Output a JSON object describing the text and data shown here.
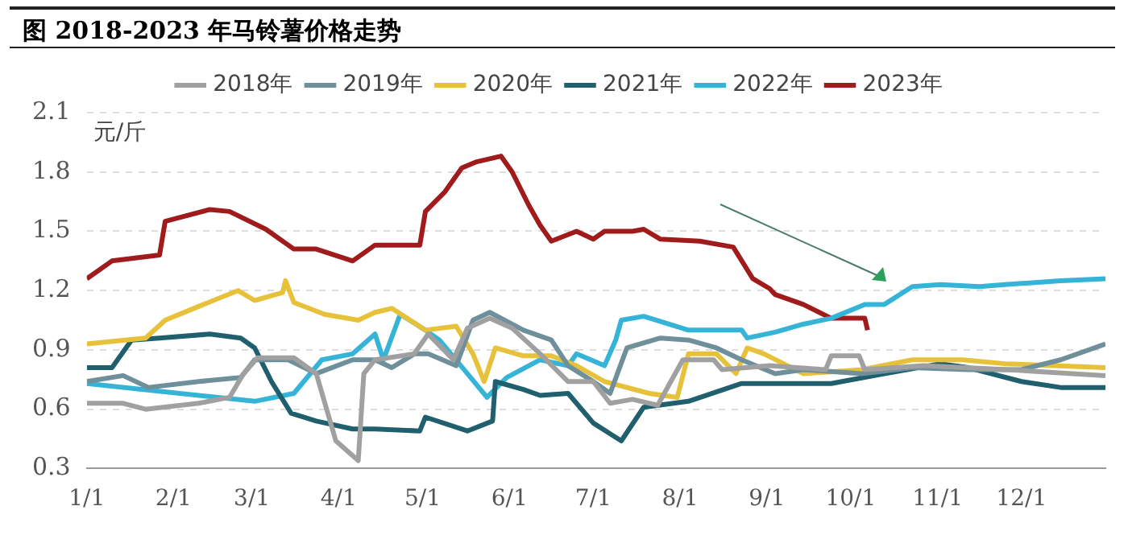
{
  "chart_data": {
    "type": "line",
    "title": "图 2018-2023 年马铃薯价格走势",
    "ylabel": "元/斤",
    "xlim": [
      "--01-01",
      "--12-31"
    ],
    "xticks": [
      {
        "value": "--01-01",
        "label": "1/1"
      },
      {
        "value": "--02-01",
        "label": "2/1"
      },
      {
        "value": "--03-01",
        "label": "3/1"
      },
      {
        "value": "--04-01",
        "label": "4/1"
      },
      {
        "value": "--05-01",
        "label": "5/1"
      },
      {
        "value": "--06-01",
        "label": "6/1"
      },
      {
        "value": "--07-01",
        "label": "7/1"
      },
      {
        "value": "--08-01",
        "label": "8/1"
      },
      {
        "value": "--09-01",
        "label": "9/1"
      },
      {
        "value": "--10-01",
        "label": "10/1"
      },
      {
        "value": "--11-01",
        "label": "11/1"
      },
      {
        "value": "--12-01",
        "label": "12/1"
      }
    ],
    "ylim": [
      0.3,
      2.1
    ],
    "yticks": [
      0.3,
      0.6,
      0.9,
      1.2,
      1.5,
      1.8,
      2.1
    ],
    "grid": "y",
    "legend": "top",
    "marker": "none",
    "line_style": "solid",
    "series": [
      {
        "name": "2018年",
        "color": "#a0a0a0",
        "x": [
          "--01-01",
          "--01-14",
          "--01-22",
          "--02-10",
          "--02-21",
          "--02-26",
          "--03-03",
          "--03-16",
          "--03-24",
          "--03-31",
          "--04-08",
          "--04-10",
          "--04-14",
          "--04-28",
          "--05-03",
          "--05-12",
          "--05-17",
          "--05-25",
          "--06-02",
          "--06-12",
          "--06-22",
          "--07-01",
          "--07-07",
          "--07-15",
          "--07-24",
          "--08-02",
          "--08-13",
          "--08-16",
          "--09-02",
          "--09-22",
          "--09-24",
          "--10-04",
          "--10-06",
          "--10-27",
          "--11-26",
          "--12-31"
        ],
        "values": [
          0.63,
          0.63,
          0.6,
          0.63,
          0.66,
          0.78,
          0.86,
          0.86,
          0.78,
          0.44,
          0.34,
          0.78,
          0.85,
          0.88,
          0.98,
          0.85,
          1.01,
          1.06,
          1.01,
          0.88,
          0.74,
          0.74,
          0.63,
          0.65,
          0.62,
          0.85,
          0.85,
          0.8,
          0.82,
          0.8,
          0.87,
          0.87,
          0.8,
          0.82,
          0.8,
          0.77
        ]
      },
      {
        "name": "2019年",
        "color": "#6f8f9a",
        "x": [
          "--01-01",
          "--01-14",
          "--01-23",
          "--02-10",
          "--02-25",
          "--03-02",
          "--03-14",
          "--03-24",
          "--04-06",
          "--04-14",
          "--04-20",
          "--04-28",
          "--05-03",
          "--05-13",
          "--05-19",
          "--05-25",
          "--06-06",
          "--06-16",
          "--06-22",
          "--07-01",
          "--07-07",
          "--07-13",
          "--07-25",
          "--08-04",
          "--08-14",
          "--08-23",
          "--09-04",
          "--09-14",
          "--10-05",
          "--10-23",
          "--11-12",
          "--12-01",
          "--12-15",
          "--12-31"
        ],
        "values": [
          0.74,
          0.77,
          0.71,
          0.74,
          0.76,
          0.85,
          0.85,
          0.78,
          0.85,
          0.85,
          0.81,
          0.88,
          0.88,
          0.82,
          1.05,
          1.09,
          1.0,
          0.95,
          0.82,
          0.74,
          0.68,
          0.91,
          0.96,
          0.95,
          0.91,
          0.85,
          0.78,
          0.8,
          0.78,
          0.81,
          0.8,
          0.8,
          0.85,
          0.93
        ]
      },
      {
        "name": "2020年",
        "color": "#e8c13a",
        "x": [
          "--01-01",
          "--01-22",
          "--01-29",
          "--02-10",
          "--02-24",
          "--03-02",
          "--03-12",
          "--03-13",
          "--03-16",
          "--03-27",
          "--04-08",
          "--04-14",
          "--04-20",
          "--05-02",
          "--05-13",
          "--05-19",
          "--05-23",
          "--05-27",
          "--06-06",
          "--06-16",
          "--06-25",
          "--07-05",
          "--07-21",
          "--07-31",
          "--08-04",
          "--08-14",
          "--08-21",
          "--08-25",
          "--08-31",
          "--09-14",
          "--10-05",
          "--10-23",
          "--11-10",
          "--11-25",
          "--12-31"
        ],
        "values": [
          0.93,
          0.96,
          1.05,
          1.12,
          1.2,
          1.15,
          1.19,
          1.25,
          1.14,
          1.08,
          1.05,
          1.09,
          1.11,
          1.0,
          1.02,
          0.88,
          0.74,
          0.91,
          0.87,
          0.87,
          0.82,
          0.74,
          0.68,
          0.66,
          0.88,
          0.88,
          0.78,
          0.91,
          0.88,
          0.78,
          0.8,
          0.85,
          0.85,
          0.83,
          0.81
        ]
      },
      {
        "name": "2021年",
        "color": "#1f5f6e",
        "x": [
          "--01-01",
          "--01-10",
          "--01-17",
          "--01-27",
          "--02-14",
          "--02-25",
          "--03-02",
          "--03-08",
          "--03-15",
          "--03-24",
          "--04-06",
          "--04-14",
          "--04-30",
          "--05-02",
          "--05-17",
          "--05-26",
          "--05-27",
          "--06-06",
          "--06-12",
          "--06-22",
          "--07-01",
          "--07-11",
          "--07-19",
          "--08-04",
          "--08-23",
          "--09-04",
          "--09-24",
          "--10-13",
          "--11-02",
          "--11-12",
          "--12-01",
          "--12-15",
          "--12-31"
        ],
        "values": [
          0.81,
          0.81,
          0.95,
          0.96,
          0.98,
          0.96,
          0.91,
          0.74,
          0.58,
          0.54,
          0.5,
          0.5,
          0.49,
          0.56,
          0.49,
          0.54,
          0.74,
          0.7,
          0.67,
          0.68,
          0.53,
          0.44,
          0.61,
          0.64,
          0.73,
          0.73,
          0.73,
          0.78,
          0.83,
          0.81,
          0.74,
          0.71,
          0.71
        ]
      },
      {
        "name": "2022年",
        "color": "#35b4d8",
        "x": [
          "--01-01",
          "--03-02",
          "--03-16",
          "--03-26",
          "--04-06",
          "--04-14",
          "--04-17",
          "--04-23",
          "--05-02",
          "--05-07",
          "--05-17",
          "--05-24",
          "--05-31",
          "--06-12",
          "--06-22",
          "--06-25",
          "--07-05",
          "--07-09",
          "--07-11",
          "--07-19",
          "--08-04",
          "--08-23",
          "--08-25",
          "--09-04",
          "--09-14",
          "--09-24",
          "--10-06",
          "--10-13",
          "--10-23",
          "--11-02",
          "--11-16",
          "--11-25",
          "--12-15",
          "--12-31"
        ],
        "values": [
          0.73,
          0.64,
          0.68,
          0.85,
          0.88,
          0.98,
          0.85,
          1.08,
          1.0,
          0.95,
          0.78,
          0.66,
          0.76,
          0.85,
          0.82,
          0.88,
          0.82,
          0.95,
          1.05,
          1.07,
          1.0,
          1.0,
          0.96,
          0.99,
          1.03,
          1.06,
          1.13,
          1.13,
          1.22,
          1.23,
          1.22,
          1.23,
          1.25,
          1.26
        ]
      },
      {
        "name": "2023年",
        "color": "#a01c1c",
        "x": [
          "--01-01",
          "--01-10",
          "--01-27",
          "--01-29",
          "--02-14",
          "--02-21",
          "--03-06",
          "--03-16",
          "--03-24",
          "--04-06",
          "--04-14",
          "--04-30",
          "--05-02",
          "--05-09",
          "--05-15",
          "--05-20",
          "--05-29",
          "--06-02",
          "--06-08",
          "--06-12",
          "--06-16",
          "--06-25",
          "--07-01",
          "--07-05",
          "--07-15",
          "--07-19",
          "--07-25",
          "--08-08",
          "--08-20",
          "--08-27",
          "--09-02",
          "--09-04",
          "--09-14",
          "--09-24",
          "--10-06",
          "--10-07"
        ],
        "values": [
          1.26,
          1.35,
          1.38,
          1.55,
          1.61,
          1.6,
          1.51,
          1.41,
          1.41,
          1.35,
          1.43,
          1.43,
          1.6,
          1.7,
          1.82,
          1.85,
          1.88,
          1.8,
          1.63,
          1.53,
          1.45,
          1.5,
          1.46,
          1.5,
          1.5,
          1.51,
          1.46,
          1.45,
          1.42,
          1.26,
          1.21,
          1.18,
          1.13,
          1.06,
          1.06,
          1.0
        ]
      }
    ]
  }
}
